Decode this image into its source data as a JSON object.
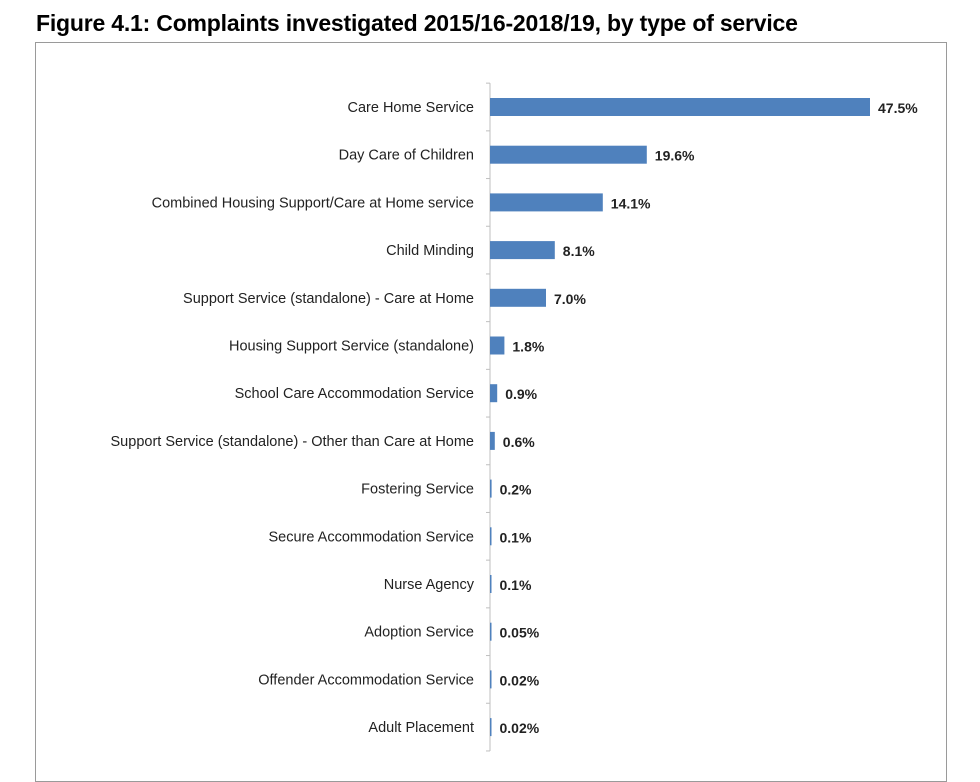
{
  "chart_data": {
    "type": "bar",
    "orientation": "horizontal",
    "title": "Figure 4.1: Complaints investigated 2015/16-2018/19, by type of service",
    "categories": [
      "Care Home Service",
      "Day Care of Children",
      "Combined Housing Support/Care at Home service",
      "Child Minding",
      "Support Service (standalone) - Care at Home",
      "Housing Support Service (standalone)",
      "School Care Accommodation Service",
      "Support Service (standalone) - Other than Care at Home",
      "Fostering Service",
      "Secure Accommodation Service",
      "Nurse Agency",
      "Adoption Service",
      "Offender Accommodation Service",
      "Adult Placement"
    ],
    "values": [
      47.5,
      19.6,
      14.1,
      8.1,
      7.0,
      1.8,
      0.9,
      0.6,
      0.2,
      0.1,
      0.1,
      0.05,
      0.02,
      0.02
    ],
    "data_labels": [
      "47.5%",
      "19.6%",
      "14.1%",
      "8.1%",
      "7.0%",
      "1.8%",
      "0.9%",
      "0.6%",
      "0.2%",
      "0.1%",
      "0.1%",
      "0.05%",
      "0.02%",
      "0.02%"
    ],
    "xlabel": "",
    "ylabel": "",
    "xlim": [
      0,
      50
    ],
    "grid": false,
    "bar_color": "#4f81bd"
  }
}
